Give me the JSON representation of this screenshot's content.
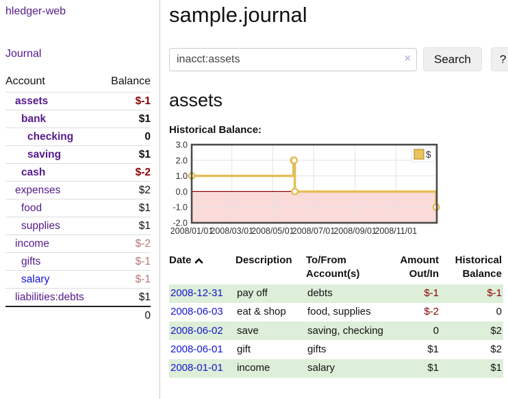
{
  "app": {
    "brand": "hledger-web"
  },
  "sidebar": {
    "journal_link": "Journal",
    "accounts_table": {
      "account_header": "Account",
      "balance_header": "Balance",
      "rows": [
        {
          "name": "assets",
          "balance": "$-1",
          "indent": 1,
          "bold": true,
          "neg": "strong"
        },
        {
          "name": "bank",
          "balance": "$1",
          "indent": 2,
          "bold": true,
          "neg": "none"
        },
        {
          "name": "checking",
          "balance": "0",
          "indent": 3,
          "bold": true,
          "neg": "none"
        },
        {
          "name": "saving",
          "balance": "$1",
          "indent": 3,
          "bold": true,
          "neg": "none"
        },
        {
          "name": "cash",
          "balance": "$-2",
          "indent": 2,
          "bold": true,
          "neg": "strong"
        },
        {
          "name": "expenses",
          "balance": "$2",
          "indent": 1,
          "bold": false,
          "neg": "none"
        },
        {
          "name": "food",
          "balance": "$1",
          "indent": 2,
          "bold": false,
          "neg": "none"
        },
        {
          "name": "supplies",
          "balance": "$1",
          "indent": 2,
          "bold": false,
          "neg": "none"
        },
        {
          "name": "income",
          "balance": "$-2",
          "indent": 1,
          "bold": false,
          "neg": "weak"
        },
        {
          "name": "gifts",
          "balance": "$-1",
          "indent": 2,
          "bold": false,
          "neg": "weak"
        },
        {
          "name": "salary",
          "balance": "$-1",
          "indent": 2,
          "bold": false,
          "neg": "weak",
          "link_color": "blue"
        },
        {
          "name": "liabilities:debts",
          "balance": "$1",
          "indent": 1,
          "bold": false,
          "neg": "none"
        }
      ],
      "total": "0"
    }
  },
  "header": {
    "title": "sample.journal"
  },
  "search": {
    "value": "inacct:assets",
    "clear_icon": "×",
    "search_button": "Search",
    "help_button": "?"
  },
  "account_page": {
    "heading": "assets",
    "chart_title": "Historical Balance:"
  },
  "chart_data": {
    "type": "line",
    "step": true,
    "series": [
      {
        "name": "$",
        "points": [
          [
            "2008-01-01",
            1
          ],
          [
            "2008-06-01",
            2
          ],
          [
            "2008-06-02",
            2
          ],
          [
            "2008-06-03",
            0
          ],
          [
            "2008-12-31",
            -1
          ]
        ]
      }
    ],
    "xlim": [
      "2008-01-01",
      "2009-01-01"
    ],
    "ylim": [
      -2,
      3
    ],
    "y_ticks": [
      "3.0",
      "2.0",
      "1.0",
      "0.0",
      "-1.0",
      "-2.0"
    ],
    "x_ticks": [
      {
        "date": "2008-01-01",
        "label": "2008/01/01"
      },
      {
        "date": "2008-03-01",
        "label": "2008/03/01"
      },
      {
        "date": "2008-05-01",
        "label": "2008/05/01"
      },
      {
        "date": "2008-07-01",
        "label": "2008/07/01"
      },
      {
        "date": "2008-09-01",
        "label": "2008/09/01"
      },
      {
        "date": "2008-11-01",
        "label": "2008/11/01"
      }
    ],
    "legend": "$",
    "grid": true,
    "legend_position": "top-right",
    "colors": {
      "line": "#e4bd55",
      "marker_fill": "#ffffff",
      "negative_region": "#fbdada",
      "zero_line": "#8b0000",
      "grid": "#e3e3e3",
      "border": "#4a4a4a",
      "legend_square": "#e8c55e",
      "legend_square_border": "#bd9330"
    }
  },
  "transactions": {
    "headers": [
      {
        "label": "Date",
        "sort_icon": "chevron-up"
      },
      {
        "label": "Description"
      },
      {
        "label": "To/From Account(s)"
      },
      {
        "label": "Amount Out/In"
      },
      {
        "label": "Historical Balance"
      }
    ],
    "rows": [
      {
        "date": "2008-12-31",
        "description": "pay off",
        "accounts": "debts",
        "amount": "$-1",
        "amount_neg": true,
        "balance": "$-1",
        "balance_neg": true,
        "highlight": true
      },
      {
        "date": "2008-06-03",
        "description": "eat & shop",
        "accounts": "food, supplies",
        "amount": "$-2",
        "amount_neg": true,
        "balance": "0",
        "balance_neg": false,
        "highlight": false
      },
      {
        "date": "2008-06-02",
        "description": "save",
        "accounts": "saving, checking",
        "amount": "0",
        "amount_neg": false,
        "balance": "$2",
        "balance_neg": false,
        "highlight": true
      },
      {
        "date": "2008-06-01",
        "description": "gift",
        "accounts": "gifts",
        "amount": "$1",
        "amount_neg": false,
        "balance": "$2",
        "balance_neg": false,
        "highlight": false
      },
      {
        "date": "2008-01-01",
        "description": "income",
        "accounts": "salary",
        "amount": "$1",
        "amount_neg": false,
        "balance": "$1",
        "balance_neg": false,
        "highlight": true
      }
    ]
  }
}
